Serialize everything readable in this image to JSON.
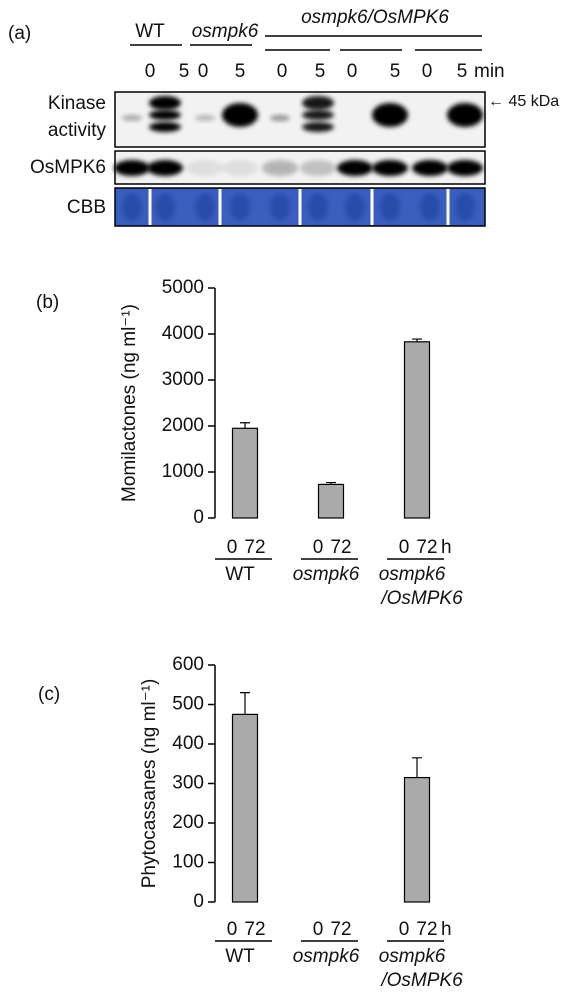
{
  "panel_a": {
    "label": "(a)",
    "groups": [
      "WT",
      "osmpk6",
      "osmpk6/OsMPK6"
    ],
    "times": [
      "0",
      "5",
      "0",
      "5",
      "0",
      "5",
      "0",
      "5",
      "0",
      "5"
    ],
    "time_unit": "min",
    "rows": [
      [
        "Kinase",
        "activity"
      ],
      [
        "OsMPK6"
      ],
      [
        "CBB"
      ]
    ],
    "marker": "← 45 kDa"
  },
  "chart_data": [
    {
      "type": "bar",
      "panel_label": "(b)",
      "ylabel": "Momilactones (ng ml⁻¹)",
      "categories": [
        "0",
        "72",
        "0",
        "72",
        "0",
        "72"
      ],
      "groups": [
        [
          "WT"
        ],
        [
          "osmpk6"
        ],
        [
          "osmpk6",
          "/OsMPK6"
        ]
      ],
      "x_unit": "h",
      "values": [
        0,
        1950,
        0,
        730,
        0,
        3830
      ],
      "errors": [
        0,
        120,
        0,
        40,
        0,
        60
      ],
      "color": "#aaaaaa",
      "ylim": [
        0,
        5000
      ],
      "yticks": [
        0,
        1000,
        2000,
        3000,
        4000,
        5000
      ]
    },
    {
      "type": "bar",
      "panel_label": "(c)",
      "ylabel": "Phytocassanes (ng ml⁻¹)",
      "categories": [
        "0",
        "72",
        "0",
        "72",
        "0",
        "72"
      ],
      "groups": [
        [
          "WT"
        ],
        [
          "osmpk6"
        ],
        [
          "osmpk6",
          "/OsMPK6"
        ]
      ],
      "x_unit": "h",
      "values": [
        0,
        475,
        0,
        0,
        0,
        315
      ],
      "errors": [
        0,
        55,
        0,
        0,
        0,
        50
      ],
      "color": "#aaaaaa",
      "ylim": [
        0,
        600
      ],
      "yticks": [
        0,
        100,
        200,
        300,
        400,
        500,
        600
      ]
    }
  ]
}
